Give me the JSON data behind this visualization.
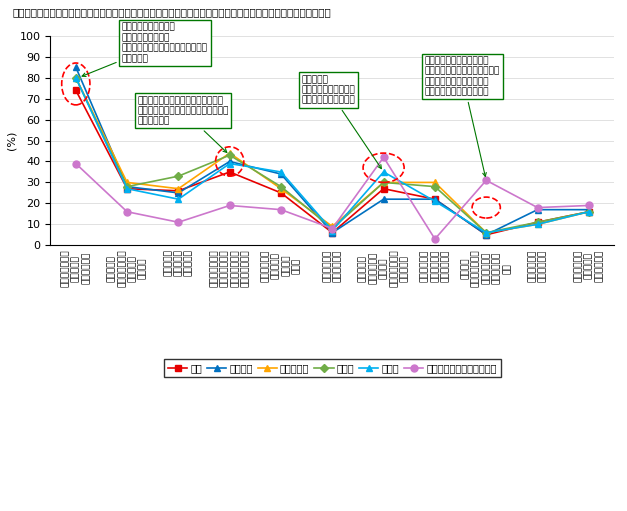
{
  "title": "「インターネット接続料金の一層の値下げ」が最も多いが、高齢層は「使い勝手がよい端末の開発」も比較的多い",
  "ylabel": "(%)",
  "ylim": [
    0,
    100
  ],
  "yticks": [
    0,
    10,
    20,
    30,
    40,
    50,
    60,
    70,
    80,
    90,
    100
  ],
  "series_order": [
    "全体",
    "低所得層",
    "ひとり親層",
    "単身層",
    "高齢層",
    "高齢層（ネット未利用者）"
  ],
  "series": {
    "全体": {
      "color": "#e60000",
      "marker": "s",
      "values": [
        74,
        27,
        26,
        35,
        25,
        6,
        27,
        22,
        5,
        11,
        16
      ]
    },
    "低所得層": {
      "color": "#0070c0",
      "marker": "^",
      "values": [
        85,
        28,
        25,
        40,
        34,
        6,
        22,
        22,
        5,
        17,
        17
      ]
    },
    "ひとり親層": {
      "color": "#ffa500",
      "marker": "^",
      "values": [
        80,
        30,
        27,
        44,
        27,
        9,
        30,
        30,
        6,
        10,
        16
      ]
    },
    "単身層": {
      "color": "#70ad47",
      "marker": "D",
      "values": [
        80,
        28,
        33,
        43,
        28,
        8,
        30,
        28,
        6,
        11,
        16
      ]
    },
    "高齢層": {
      "color": "#00b0f0",
      "marker": "^",
      "values": [
        80,
        27,
        22,
        39,
        35,
        7,
        35,
        21,
        6,
        10,
        16
      ]
    },
    "高齢層（ネット未利用者）": {
      "color": "#cc77cc",
      "marker": "o",
      "values": [
        39,
        16,
        11,
        19,
        17,
        8,
        42,
        3,
        31,
        18,
        19
      ]
    }
  },
  "cat_labels": [
    "インターネット\n接続料金の\n一層の値下げ",
    "公共施設の\nインターネット\n接続端末の\n無料開放",
    "公共施設に\nおける無線\nランの整備",
    "インターネット\n接続料金の自負\n支援制度／利用\n料金の引き下げ",
    "パソコン等の\n接続端末の\n負担制度\n購入費",
    "ＩＣＴ利活用\n研修セミナー",
    "使い勝手が\nよいインター\nネットに\nつながりやすい\n端末の開発",
    "交流サイト、\nコミュニティ\nサイトの開設",
    "地域内の\nインターネット\n接続に関わる\nヘルプデスク\n機能",
    "教えてくれる\n公的サービス",
    "ウェブサイト\nの安全性に\nついて個別に"
  ],
  "ann1_text": "ネット未利用者以外の\n対象全セグメントで\n「ネット接続料金の一層の値下げ」\nが最も多い",
  "ann2_text": "低所得層、ひとり親層、単身層では\n「ネット接続料金の負担支援制度」が\n２番目に多い",
  "ann3_text": "高齢層では\n「使い勝手がよい端末\nの開発」が比較的多い",
  "ann4_text": "高齢層のネット未利用者は\n「使い勝手がよい端末の開発」\nが多く、「地域内のヘルプ\nデスク機能」も比較的多い"
}
